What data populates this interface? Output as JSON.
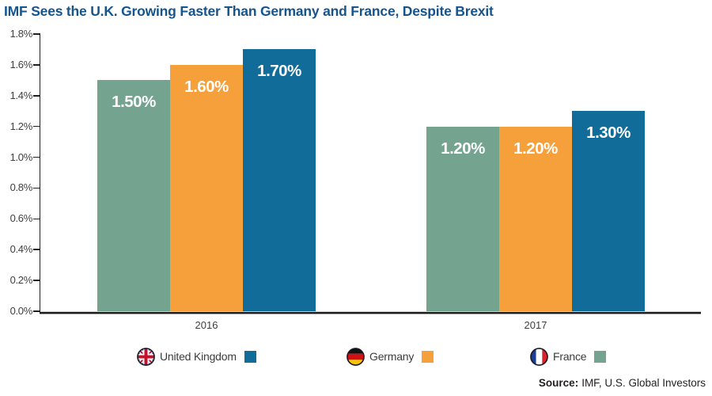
{
  "title": "IMF Sees the U.K. Growing Faster Than Germany and France, Despite Brexit",
  "chart_data": {
    "type": "bar",
    "title": "IMF Sees the U.K. Growing Faster Than Germany and France, Despite Brexit",
    "categories": [
      "2016",
      "2017"
    ],
    "series": [
      {
        "name": "France",
        "color": "#74A38F",
        "values": [
          1.5,
          1.2
        ],
        "data_labels": [
          "1.50%",
          "1.20%"
        ]
      },
      {
        "name": "Germany",
        "color": "#F6A03C",
        "values": [
          1.6,
          1.2
        ],
        "data_labels": [
          "1.60%",
          "1.20%"
        ]
      },
      {
        "name": "United Kingdom",
        "color": "#116C99",
        "values": [
          1.7,
          1.3
        ],
        "data_labels": [
          "1.70%",
          "1.30%"
        ]
      }
    ],
    "xlabel": "",
    "ylabel": "",
    "ylim": [
      0,
      1.8
    ],
    "ytick_step": 0.2,
    "ytick_labels": [
      "1.8%",
      "1.6%",
      "1.4%",
      "1.2%",
      "1.0%",
      "0.8%",
      "0.6%",
      "0.4%",
      "0.2%",
      "0.0%"
    ],
    "grid": false,
    "legend_position": "bottom",
    "value_label_color": "#FFFFFF"
  },
  "legend": {
    "items": [
      {
        "label": "United Kingdom",
        "flag_icon": "uk-flag-icon",
        "swatch_color": "#116C99"
      },
      {
        "label": "Germany",
        "flag_icon": "germany-flag-icon",
        "swatch_color": "#F6A03C"
      },
      {
        "label": "France",
        "flag_icon": "france-flag-icon",
        "swatch_color": "#74A38F"
      }
    ]
  },
  "source": {
    "label": "Source:",
    "text": "IMF, U.S. Global Investors"
  },
  "colors": {
    "title": "#15548D",
    "axis": "#231F20",
    "tick_text": "#3E3E40"
  }
}
